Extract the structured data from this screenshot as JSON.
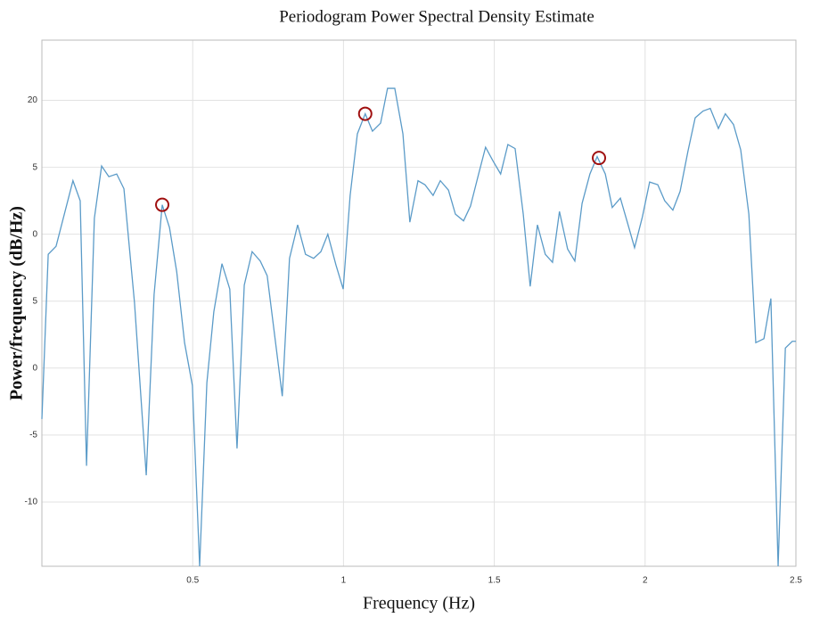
{
  "chart_data": {
    "type": "line",
    "title": "Periodogram Power Spectral Density Estimate",
    "xlabel": "Frequency (Hz)",
    "ylabel": "Power/frequency (dB/Hz)",
    "xlim": [
      0,
      2.5
    ],
    "ylim": [
      -14.8,
      24.5
    ],
    "xticks": [
      0.5,
      1,
      1.5,
      2,
      2.5
    ],
    "yticks": [
      20,
      {
        "value": 15,
        "label": "5"
      },
      {
        "value": 10,
        "label": "0"
      },
      5,
      0,
      -5,
      -10
    ],
    "grid": true,
    "series": [
      {
        "color": "#5b9bc8",
        "x": [
          0,
          0.021,
          0.047,
          0.103,
          0.127,
          0.148,
          0.174,
          0.198,
          0.222,
          0.248,
          0.272,
          0.307,
          0.346,
          0.372,
          0.399,
          0.423,
          0.447,
          0.473,
          0.499,
          0.523,
          0.547,
          0.57,
          0.597,
          0.623,
          0.647,
          0.671,
          0.697,
          0.724,
          0.747,
          0.797,
          0.821,
          0.848,
          0.874,
          0.901,
          0.925,
          0.948,
          0.975,
          0.999,
          1.022,
          1.046,
          1.072,
          1.096,
          1.123,
          1.146,
          1.17,
          1.197,
          1.22,
          1.247,
          1.27,
          1.297,
          1.321,
          1.348,
          1.371,
          1.398,
          1.421,
          1.448,
          1.471,
          1.495,
          1.521,
          1.545,
          1.569,
          1.596,
          1.619,
          1.643,
          1.669,
          1.693,
          1.716,
          1.743,
          1.767,
          1.791,
          1.817,
          1.841,
          1.868,
          1.891,
          1.918,
          1.941,
          1.965,
          1.991,
          2.015,
          2.042,
          2.065,
          2.092,
          2.116,
          2.142,
          2.166,
          2.192,
          2.216,
          2.243,
          2.266,
          2.293,
          2.317,
          2.344,
          2.367,
          2.394,
          2.417,
          2.441,
          2.465,
          2.488,
          2.5
        ],
        "values": [
          -3.8,
          8.5,
          9.1,
          14,
          12.5,
          -7.3,
          11.2,
          15.1,
          14.3,
          14.5,
          13.4,
          4.9,
          -8,
          5.5,
          12.2,
          10.5,
          7.2,
          1.9,
          -1.3,
          -14.8,
          -1.1,
          4.2,
          7.8,
          5.9,
          -6,
          6.2,
          8.7,
          8,
          6.9,
          -2.1,
          8.2,
          10.7,
          8.5,
          8.2,
          8.7,
          10,
          7.7,
          5.9,
          12.9,
          17.5,
          19,
          17.7,
          18.3,
          20.9,
          20.9,
          17.5,
          10.9,
          14,
          13.7,
          12.9,
          14,
          13.3,
          11.5,
          11,
          12.1,
          14.5,
          16.5,
          15.5,
          14.5,
          16.7,
          16.4,
          11.5,
          6.1,
          10.7,
          8.5,
          7.9,
          11.7,
          8.9,
          8,
          12.3,
          14.5,
          15.8,
          14.5,
          12,
          12.7,
          10.9,
          9,
          11.3,
          13.9,
          13.7,
          12.5,
          11.8,
          13.2,
          16.2,
          18.7,
          19.2,
          19.4,
          17.9,
          19,
          18.2,
          16.3,
          11.5,
          1.9,
          2.2,
          5.2,
          -14.8,
          1.5,
          2,
          2
        ]
      },
      {
        "color": "#a01010",
        "marker": "circle",
        "x": [
          0.399,
          1.072,
          1.847
        ],
        "values": [
          12.2,
          19,
          15.7
        ]
      }
    ]
  }
}
